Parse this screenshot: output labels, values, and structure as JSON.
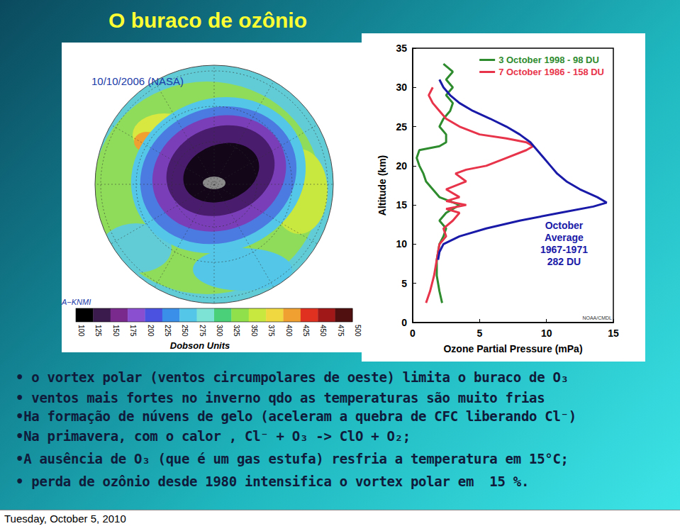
{
  "title": "O buraco de ozônio",
  "map": {
    "label": "10/10/2006 (NASA)",
    "credit": "A−KNMI",
    "colorbar_title": "Dobson Units",
    "colorbar_ticks": [
      100,
      125,
      150,
      175,
      200,
      225,
      250,
      275,
      300,
      325,
      350,
      375,
      400,
      425,
      450,
      475,
      500
    ],
    "colorbar_colors": [
      "#000000",
      "#3b1a4d",
      "#7a2a8c",
      "#8a4fd0",
      "#4b52e0",
      "#3a8fe8",
      "#54c6e8",
      "#7de3d4",
      "#4bd07a",
      "#8fe04a",
      "#c8e840",
      "#f0d840",
      "#f0a030",
      "#e03020",
      "#a01818",
      "#501010"
    ]
  },
  "chart_data": {
    "type": "line",
    "x_label": "Ozone Partial Pressure (mPa)",
    "y_label": "Altitude (km)",
    "xlim": [
      0,
      15
    ],
    "ylim": [
      0,
      35
    ],
    "xticks": [
      0,
      5,
      10,
      15
    ],
    "yticks": [
      0,
      5,
      10,
      15,
      20,
      25,
      30,
      35
    ],
    "grid": false,
    "legend": "upper right",
    "source": "NOAA/CMDL",
    "series": [
      {
        "name": "3 October 1998 - 98 DU",
        "color": "#2e8b2e",
        "x": [
          2.2,
          2.0,
          1.8,
          1.8,
          2.0,
          2.3,
          2.5,
          2.0,
          2.5,
          3.5,
          2.0,
          1.5,
          1.0,
          0.8,
          0.5,
          0.3,
          0.5,
          2.0,
          2.5,
          2.5,
          2.0,
          2.3,
          2.8,
          3.0,
          2.5,
          3.0,
          2.5,
          3.0,
          2.3
        ],
        "values": [
          2.5,
          4,
          6,
          8,
          10,
          11,
          12,
          13,
          14,
          15,
          16,
          17,
          18,
          19,
          20,
          21,
          22,
          22.5,
          23,
          24,
          25,
          26,
          27,
          28,
          29,
          30,
          31,
          32,
          33
        ]
      },
      {
        "name": "7 October 1986 - 158 DU",
        "color": "#e8344a",
        "x": [
          1.0,
          1.3,
          1.6,
          1.8,
          2.0,
          2.5,
          2.3,
          3.0,
          3.5,
          2.5,
          4.0,
          2.5,
          3.5,
          2.5,
          4.0,
          3.2,
          4.0,
          5.5,
          7.0,
          8.5,
          9.0,
          8.5,
          7.0,
          5.0,
          3.5,
          2.5,
          2.0,
          1.5,
          1.2,
          1.5
        ],
        "values": [
          2.5,
          4,
          6,
          8,
          10,
          11,
          12,
          13,
          14,
          14.5,
          15,
          15.5,
          16,
          17,
          18,
          19,
          19.5,
          20,
          21,
          22,
          22.5,
          23,
          23.5,
          24,
          25,
          26,
          27,
          28,
          29,
          30
        ]
      },
      {
        "label_lines": [
          "October",
          "Average",
          "1967-1971",
          "282 DU"
        ],
        "color": "#1a1aa8",
        "x": [
          1.9,
          2.0,
          2.3,
          3.5,
          5.5,
          8.0,
          11.0,
          13.5,
          14.5,
          13.8,
          12.5,
          11.5,
          10.8,
          10.3,
          9.8,
          9.3,
          8.8,
          8.0,
          7.0,
          5.8,
          4.5,
          3.5,
          2.8,
          2.3,
          2.0
        ],
        "values": [
          8,
          9,
          10,
          11,
          12,
          13,
          14,
          14.8,
          15.3,
          16,
          17,
          18,
          19,
          20,
          21,
          22,
          23,
          24,
          25,
          26,
          27,
          28,
          29,
          30,
          31
        ]
      }
    ]
  },
  "bullets": [
    "• o vortex polar (ventos circumpolares de oeste) limita o buraco de O₃",
    "• ventos mais fortes no inverno qdo as temperaturas são muito frias",
    "•Ha formação de núvens de gelo (aceleram a quebra de CFC liberando Cl⁻)",
    "•Na primavera, com o calor , Cl⁻ + O₃ -> ClO + O₂;",
    "•A ausência de O₃ (que é um gas estufa) resfria a temperatura em 15°C;",
    "• perda de ozônio desde 1980 intensifica o vortex polar em  15 %."
  ],
  "footer": "Tuesday, October 5, 2010"
}
